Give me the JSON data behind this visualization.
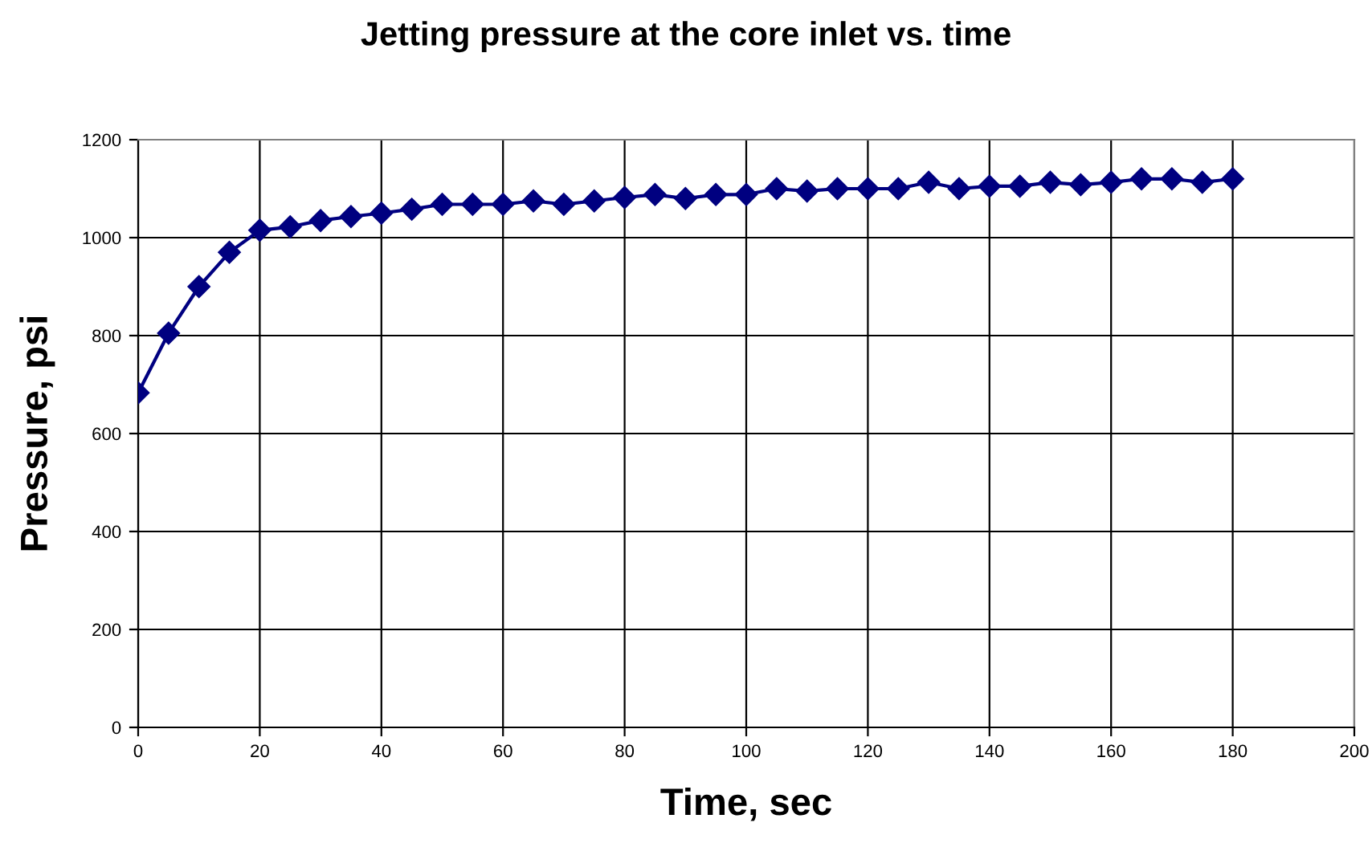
{
  "chart_data": {
    "type": "line",
    "title": "Jetting pressure at the core inlet vs. time",
    "xlabel": "Time, sec",
    "ylabel": "Pressure, psi",
    "x": [
      0,
      5,
      10,
      15,
      20,
      25,
      30,
      35,
      40,
      45,
      50,
      55,
      60,
      65,
      70,
      75,
      80,
      85,
      90,
      95,
      100,
      105,
      110,
      115,
      120,
      125,
      130,
      135,
      140,
      145,
      150,
      155,
      160,
      165,
      170,
      175,
      180
    ],
    "series": [
      {
        "color": "#000080",
        "values": [
          683,
          805,
          900,
          970,
          1015,
          1022,
          1035,
          1043,
          1050,
          1058,
          1068,
          1068,
          1068,
          1075,
          1068,
          1075,
          1082,
          1088,
          1080,
          1088,
          1088,
          1100,
          1095,
          1100,
          1100,
          1100,
          1113,
          1100,
          1105,
          1105,
          1113,
          1108,
          1113,
          1120,
          1120,
          1113,
          1120
        ]
      }
    ],
    "xlim": [
      0,
      200
    ],
    "xticks": [
      0,
      20,
      40,
      60,
      80,
      100,
      120,
      140,
      160,
      180,
      200
    ],
    "ylim": [
      0,
      1200
    ],
    "yticks": [
      0,
      200,
      400,
      600,
      800,
      1000,
      1200
    ],
    "grid": true,
    "legend": false,
    "marker": "diamond",
    "line_style": "solid"
  }
}
